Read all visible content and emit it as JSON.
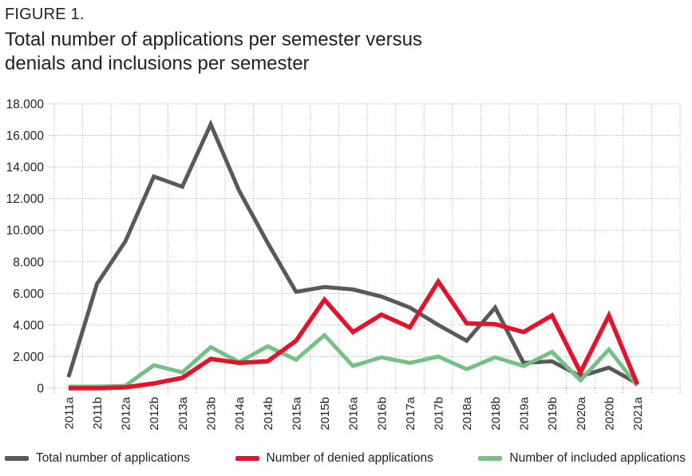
{
  "header": {
    "figure_label": "FIGURE 1.",
    "title_lines": [
      "Total number of applications per semester versus",
      "denials and inclusions per semester"
    ]
  },
  "chart_data": {
    "type": "line",
    "title": "Total number of applications per semester versus denials and inclusions per semester",
    "xlabel": "",
    "ylabel": "",
    "categories": [
      "2011a",
      "2011b",
      "2012a",
      "2012b",
      "2013a",
      "2013b",
      "2014a",
      "2014b",
      "2015a",
      "2015b",
      "2016a",
      "2016b",
      "2017a",
      "2017b",
      "2018a",
      "2018b",
      "2019a",
      "2019b",
      "2020a",
      "2020b",
      "2021a"
    ],
    "series": [
      {
        "name": "Total number of applications",
        "color": "#58595b",
        "values": [
          700,
          6600,
          9300,
          13400,
          12750,
          16700,
          12500,
          9200,
          6100,
          6400,
          6250,
          5800,
          5100,
          4000,
          3000,
          5100,
          1600,
          1700,
          750,
          1300,
          300
        ]
      },
      {
        "name": "Number of denied applications",
        "color": "#e2142c",
        "values": [
          0,
          0,
          50,
          300,
          650,
          1850,
          1600,
          1700,
          3000,
          5600,
          3550,
          4650,
          3850,
          6750,
          4100,
          4050,
          3550,
          4600,
          1000,
          4600,
          250
        ]
      },
      {
        "name": "Number of included applications",
        "color": "#74c085",
        "values": [
          100,
          100,
          150,
          1450,
          1000,
          2600,
          1650,
          2650,
          1800,
          3350,
          1400,
          1950,
          1600,
          2000,
          1200,
          1950,
          1400,
          2300,
          500,
          2450,
          150
        ]
      }
    ],
    "ylim": [
      0,
      18000
    ],
    "ytick_step": 2000,
    "ytick_labels": [
      "0",
      "2.000",
      "4.000",
      "6.000",
      "8.000",
      "10.000",
      "12.000",
      "14.000",
      "16.000",
      "18.000"
    ],
    "grid": "dotted",
    "gridline_color": "#9d9fa2",
    "legend_position": "bottom"
  }
}
